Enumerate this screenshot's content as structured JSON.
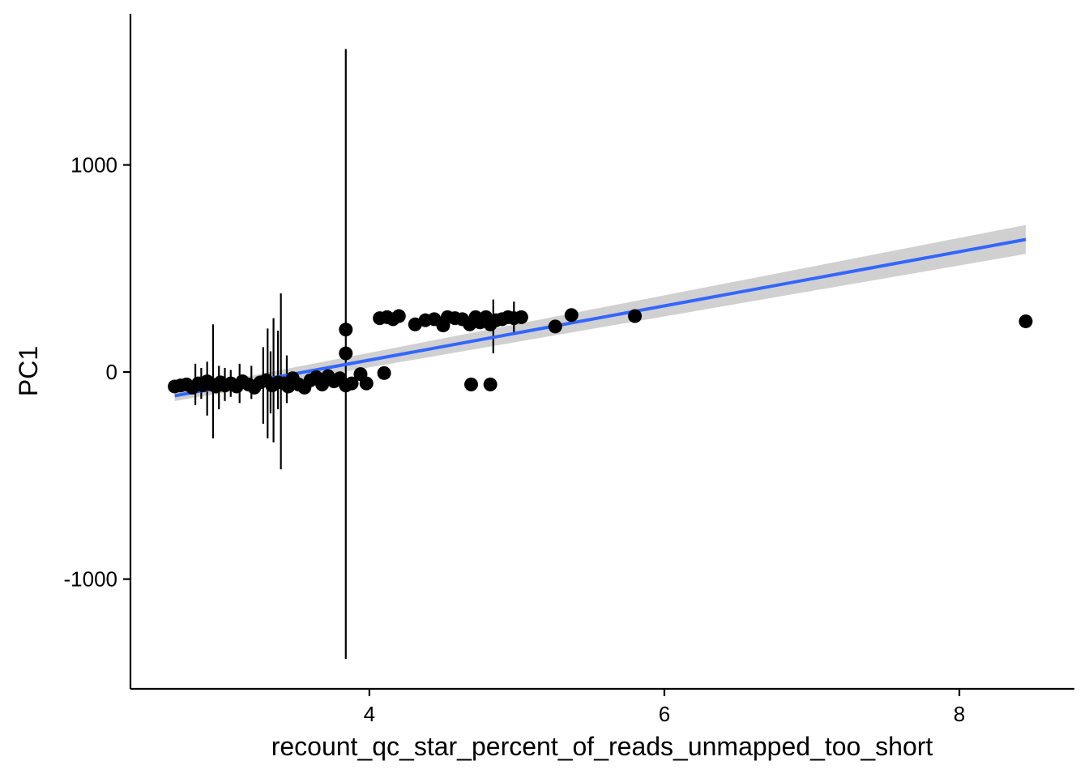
{
  "chart_data": {
    "type": "scatter",
    "title": "",
    "xlabel": "recount_qc_star_percent_of_reads_unmapped_too_short",
    "ylabel": "PC1",
    "xlim": [
      2.38,
      8.78
    ],
    "ylim": [
      -1530,
      1730
    ],
    "x_ticks": [
      4,
      6,
      8
    ],
    "y_ticks": [
      -1000,
      0,
      1000
    ],
    "x_tick_labels": [
      "4",
      "6",
      "8"
    ],
    "y_tick_labels": [
      "-1000",
      "0",
      "1000"
    ],
    "grid": false,
    "legend": "none",
    "colors": {
      "points": "#000000",
      "fit_line": "#3366FF",
      "confidence_band": "#C8C8C8",
      "axis": "#000000"
    },
    "points": [
      [
        2.68,
        -70
      ],
      [
        2.72,
        -65
      ],
      [
        2.76,
        -60
      ],
      [
        2.8,
        -75
      ],
      [
        2.84,
        -55
      ],
      [
        2.87,
        -65
      ],
      [
        2.9,
        -45
      ],
      [
        2.93,
        -60
      ],
      [
        2.96,
        -70
      ],
      [
        2.99,
        -50
      ],
      [
        3.02,
        -65
      ],
      [
        3.06,
        -55
      ],
      [
        3.1,
        -70
      ],
      [
        3.14,
        -45
      ],
      [
        3.18,
        -60
      ],
      [
        3.22,
        -75
      ],
      [
        3.26,
        -50
      ],
      [
        3.3,
        -40
      ],
      [
        3.34,
        -65
      ],
      [
        3.38,
        -50
      ],
      [
        3.42,
        -55
      ],
      [
        3.45,
        -70
      ],
      [
        3.48,
        -30
      ],
      [
        3.52,
        -60
      ],
      [
        3.56,
        -75
      ],
      [
        3.6,
        -40
      ],
      [
        3.64,
        -25
      ],
      [
        3.68,
        -60
      ],
      [
        3.72,
        -20
      ],
      [
        3.76,
        -45
      ],
      [
        3.8,
        -30
      ],
      [
        3.84,
        -65
      ],
      [
        3.88,
        -55
      ],
      [
        3.94,
        -10
      ],
      [
        3.98,
        -55
      ],
      [
        4.07,
        260
      ],
      [
        4.12,
        265
      ],
      [
        4.16,
        255
      ],
      [
        4.2,
        270
      ],
      [
        4.1,
        -5
      ],
      [
        4.31,
        230
      ],
      [
        4.38,
        250
      ],
      [
        4.44,
        255
      ],
      [
        4.5,
        225
      ],
      [
        4.53,
        265
      ],
      [
        4.58,
        260
      ],
      [
        4.63,
        255
      ],
      [
        4.68,
        230
      ],
      [
        4.72,
        265
      ],
      [
        4.75,
        240
      ],
      [
        4.79,
        265
      ],
      [
        4.82,
        230
      ],
      [
        4.86,
        250
      ],
      [
        4.9,
        255
      ],
      [
        4.94,
        265
      ],
      [
        4.98,
        260
      ],
      [
        5.03,
        265
      ],
      [
        5.26,
        220
      ],
      [
        5.37,
        275
      ],
      [
        5.8,
        270
      ],
      [
        8.45,
        245
      ],
      [
        4.69,
        -60
      ],
      [
        4.82,
        -60
      ],
      [
        3.84,
        90
      ],
      [
        3.84,
        205
      ]
    ],
    "error_bars": [
      {
        "x": 2.82,
        "y": -70,
        "ymin": -160,
        "ymax": 40
      },
      {
        "x": 2.86,
        "y": -60,
        "ymin": -130,
        "ymax": 20
      },
      {
        "x": 2.9,
        "y": -80,
        "ymin": -210,
        "ymax": 50
      },
      {
        "x": 2.94,
        "y": -50,
        "ymin": -320,
        "ymax": 230
      },
      {
        "x": 2.98,
        "y": -60,
        "ymin": -180,
        "ymax": 30
      },
      {
        "x": 3.02,
        "y": -70,
        "ymin": -140,
        "ymax": 20
      },
      {
        "x": 3.06,
        "y": -50,
        "ymin": -120,
        "ymax": 10
      },
      {
        "x": 3.12,
        "y": -60,
        "ymin": -150,
        "ymax": 40
      },
      {
        "x": 3.2,
        "y": -55,
        "ymin": -130,
        "ymax": 30
      },
      {
        "x": 3.28,
        "y": -50,
        "ymin": -250,
        "ymax": 120
      },
      {
        "x": 3.31,
        "y": -60,
        "ymin": -320,
        "ymax": 210
      },
      {
        "x": 3.33,
        "y": -40,
        "ymin": -200,
        "ymax": 100
      },
      {
        "x": 3.35,
        "y": -70,
        "ymin": -340,
        "ymax": 260
      },
      {
        "x": 3.38,
        "y": -50,
        "ymin": -180,
        "ymax": 200
      },
      {
        "x": 3.4,
        "y": -60,
        "ymin": -470,
        "ymax": 380
      },
      {
        "x": 3.44,
        "y": -50,
        "ymin": -150,
        "ymax": 80
      },
      {
        "x": 3.84,
        "y": 90,
        "ymin": -1385,
        "ymax": 1560
      },
      {
        "x": 4.84,
        "y": 230,
        "ymin": 90,
        "ymax": 350
      },
      {
        "x": 4.98,
        "y": 255,
        "ymin": 180,
        "ymax": 340
      }
    ],
    "fit_line": {
      "x": [
        2.68,
        8.45
      ],
      "y": [
        -115,
        640
      ],
      "band_lower": [
        -140,
        570
      ],
      "band_upper": [
        -90,
        710
      ]
    }
  }
}
